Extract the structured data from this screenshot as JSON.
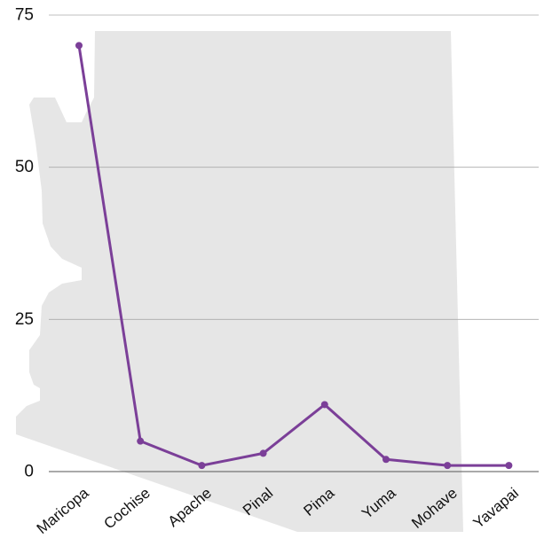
{
  "chart_data": {
    "type": "line",
    "title": "",
    "xlabel": "",
    "ylabel": "",
    "categories": [
      "Maricopa",
      "Cochise",
      "Apache",
      "Pinal",
      "Pima",
      "Yuma",
      "Mohave",
      "Yavapai"
    ],
    "series": [
      {
        "values": [
          70,
          5,
          1,
          3,
          11,
          2,
          1,
          1
        ]
      }
    ],
    "ylim": [
      0,
      75
    ],
    "yticks": [
      0,
      25,
      50,
      75
    ],
    "grid": true,
    "legend": "none",
    "background_shape": "Arizona state outline",
    "colors": {
      "line": "#7b3f98",
      "grid": "#aaaaaa",
      "background_shape": "#e6e6e6"
    }
  }
}
